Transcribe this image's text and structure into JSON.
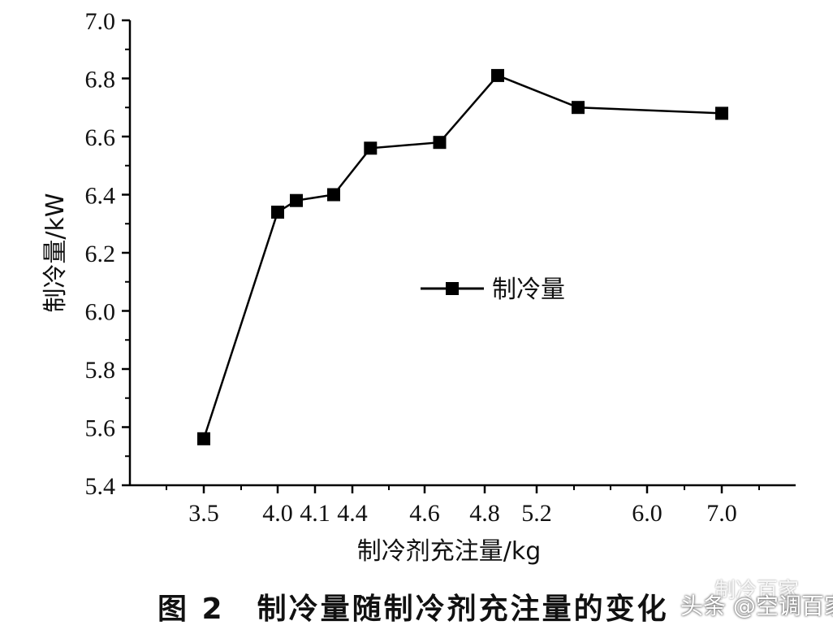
{
  "chart_data": {
    "type": "line",
    "title": "",
    "xlabel": "制冷剂充注量/kg",
    "ylabel": "制冷量/kW",
    "x_tick_labels": [
      "3.5",
      "4.0",
      "4.1",
      "4.4",
      "4.6",
      "4.8",
      "5.2",
      "6.0",
      "7.0"
    ],
    "y_ticks": [
      5.4,
      5.6,
      5.8,
      6.0,
      6.2,
      6.4,
      6.6,
      6.8,
      7.0
    ],
    "ylim": [
      5.4,
      7.0
    ],
    "grid": false,
    "legend_position": "center-right",
    "series": [
      {
        "name": "制冷量",
        "marker": "square",
        "color": "#000000",
        "x": [
          3.5,
          4.0,
          4.05,
          4.25,
          4.45,
          4.65,
          4.9,
          5.5,
          7.0
        ],
        "y": [
          5.56,
          6.34,
          6.38,
          6.4,
          6.56,
          6.58,
          6.81,
          6.7,
          6.68
        ]
      }
    ]
  },
  "caption": {
    "label": "图 2",
    "text": "制冷量随制冷剂充注量的变化"
  },
  "watermark": {
    "text": "头条 @空调百家",
    "ghost": "制冷百家"
  }
}
